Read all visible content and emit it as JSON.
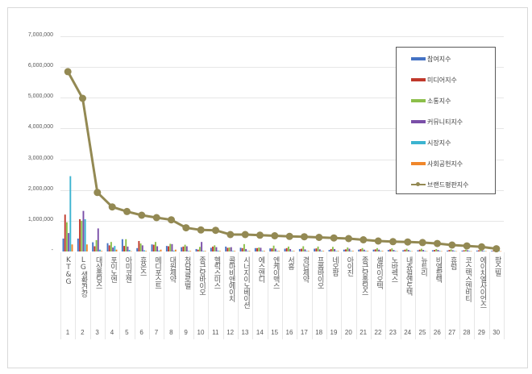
{
  "chart_data": {
    "type": "bar+line",
    "title": "",
    "xlabel": "",
    "ylabel": "",
    "ylim": [
      0,
      7000000
    ],
    "yticks": [
      "-",
      "1,000,000",
      "2,000,000",
      "3,000,000",
      "4,000,000",
      "5,000,000",
      "6,000,000",
      "7,000,000"
    ],
    "grid": true,
    "legend_position": "right-top inside",
    "categories": [
      "KT&G",
      "LG생활건강",
      "대상홀딩스",
      "포이노엔",
      "아미코젠",
      "휴온스",
      "메디포스트",
      "대원제약",
      "청담글로벌",
      "종근당바이오",
      "헬릭스미스",
      "콜마비앤에이치",
      "시너지이노베이션",
      "에스앤디",
      "엔케이맥스",
      "서흥",
      "경남제약",
      "프롬바이오",
      "네오팜",
      "아이진",
      "종근당홀딩스",
      "셀바이오텍",
      "노바렉스",
      "내츄럴엔도텍",
      "뉴트리",
      "비엘팜텍",
      "휴럼",
      "코스맥스엔비티",
      "에이치엘사이언스",
      "팜스빌"
    ],
    "ranks": [
      "1",
      "2",
      "3",
      "4",
      "5",
      "6",
      "7",
      "8",
      "9",
      "10",
      "11",
      "12",
      "13",
      "14",
      "15",
      "16",
      "17",
      "18",
      "19",
      "20",
      "21",
      "22",
      "23",
      "24",
      "25",
      "26",
      "27",
      "28",
      "29",
      "30"
    ],
    "series": [
      {
        "name": "참여지수",
        "kind": "bar",
        "color": "#4472c4",
        "values": [
          420000,
          420000,
          300000,
          270000,
          400000,
          110000,
          230000,
          180000,
          140000,
          80000,
          120000,
          160000,
          120000,
          110000,
          100000,
          90000,
          80000,
          90000,
          50000,
          60000,
          60000,
          60000,
          50000,
          40000,
          40000,
          40000,
          30000,
          30000,
          30000,
          20000
        ]
      },
      {
        "name": "미디어지수",
        "kind": "bar",
        "color": "#c0392b",
        "values": [
          1200000,
          1050000,
          170000,
          200000,
          180000,
          340000,
          220000,
          170000,
          160000,
          60000,
          160000,
          120000,
          110000,
          110000,
          100000,
          110000,
          90000,
          100000,
          80000,
          70000,
          80000,
          70000,
          70000,
          60000,
          60000,
          50000,
          50000,
          40000,
          40000,
          30000
        ]
      },
      {
        "name": "소통지수",
        "kind": "bar",
        "color": "#8cbf4a",
        "values": [
          950000,
          1000000,
          370000,
          310000,
          400000,
          260000,
          310000,
          250000,
          220000,
          150000,
          200000,
          130000,
          240000,
          130000,
          190000,
          160000,
          170000,
          160000,
          150000,
          130000,
          110000,
          110000,
          100000,
          90000,
          90000,
          80000,
          70000,
          60000,
          60000,
          50000
        ]
      },
      {
        "name": "커뮤니티지수",
        "kind": "bar",
        "color": "#7a4fa8",
        "values": [
          600000,
          1320000,
          750000,
          130000,
          160000,
          200000,
          170000,
          240000,
          170000,
          310000,
          140000,
          140000,
          80000,
          120000,
          90000,
          80000,
          70000,
          70000,
          80000,
          90000,
          60000,
          60000,
          50000,
          50000,
          50000,
          50000,
          40000,
          40000,
          30000,
          30000
        ]
      },
      {
        "name": "시장지수",
        "kind": "bar",
        "color": "#3cb4d0",
        "values": [
          2450000,
          1050000,
          60000,
          180000,
          50000,
          40000,
          30000,
          30000,
          20000,
          20000,
          30000,
          20000,
          20000,
          20000,
          20000,
          20000,
          20000,
          20000,
          20000,
          20000,
          20000,
          20000,
          20000,
          20000,
          20000,
          20000,
          20000,
          20000,
          20000,
          20000
        ]
      },
      {
        "name": "사회공헌지수",
        "kind": "bar",
        "color": "#f0872a",
        "values": [
          230000,
          230000,
          20000,
          60000,
          10000,
          20000,
          60000,
          60000,
          20000,
          20000,
          20000,
          20000,
          20000,
          20000,
          20000,
          20000,
          20000,
          20000,
          20000,
          20000,
          20000,
          20000,
          10000,
          10000,
          10000,
          10000,
          10000,
          10000,
          10000,
          10000
        ]
      },
      {
        "name": "브랜드평판지수",
        "kind": "line",
        "color": "#938953",
        "values": [
          5850000,
          4980000,
          1920000,
          1450000,
          1300000,
          1180000,
          1100000,
          1030000,
          770000,
          700000,
          690000,
          550000,
          550000,
          530000,
          510000,
          490000,
          480000,
          460000,
          440000,
          420000,
          380000,
          340000,
          320000,
          310000,
          290000,
          260000,
          210000,
          180000,
          150000,
          90000
        ]
      }
    ]
  },
  "legend": {
    "items": [
      {
        "label": "참여지수",
        "color": "#4472c4",
        "kind": "bar"
      },
      {
        "label": "미디어지수",
        "color": "#c0392b",
        "kind": "bar"
      },
      {
        "label": "소통지수",
        "color": "#8cbf4a",
        "kind": "bar"
      },
      {
        "label": "커뮤니티지수",
        "color": "#7a4fa8",
        "kind": "bar"
      },
      {
        "label": "시장지수",
        "color": "#3cb4d0",
        "kind": "bar"
      },
      {
        "label": "사회공헌지수",
        "color": "#f0872a",
        "kind": "bar"
      },
      {
        "label": "브랜드평판지수",
        "color": "#938953",
        "kind": "line"
      }
    ]
  }
}
